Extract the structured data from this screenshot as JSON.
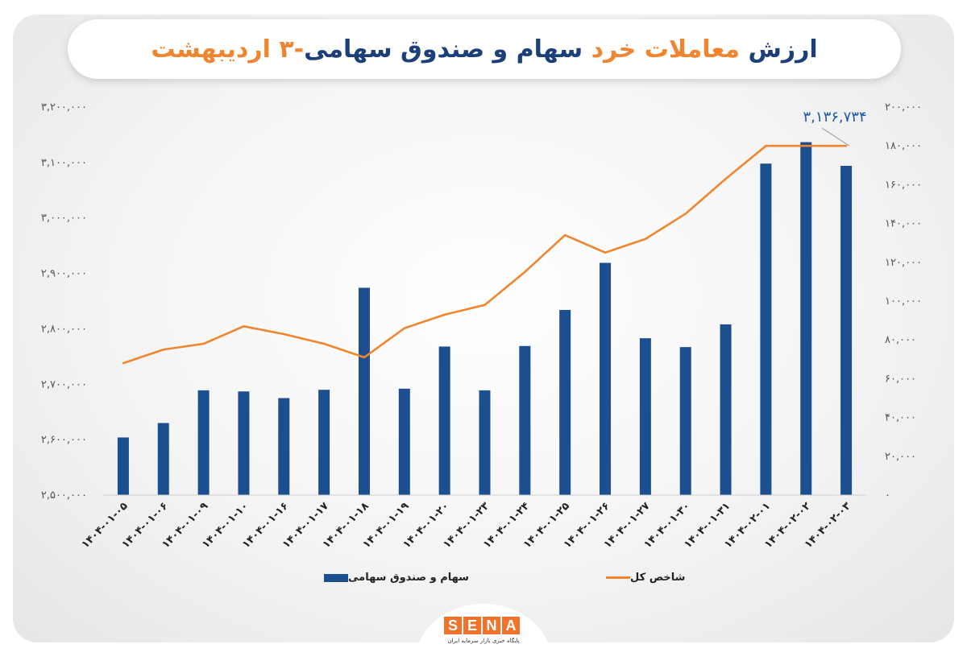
{
  "title": {
    "part1": "ارزش ",
    "part2": "معاملات خرد ",
    "part3": "سهام و صندوق سهامی",
    "part4": "-۳ اردیبهشت",
    "colors": {
      "dark": "#1c3f7a",
      "accent": "#f0852f"
    }
  },
  "quote_left": "“",
  "quote_right": "”",
  "legend": {
    "bar_label": "سهام و صندوق سهامی",
    "line_label": "شاخص کل"
  },
  "logo": {
    "letters": [
      "S",
      "E",
      "N",
      "A"
    ],
    "subtitle": "پایگاه خبری بازار سرمایه ایران"
  },
  "chart_data": {
    "type": "bar",
    "categories": [
      "۱۴۰۴-۰۱-۰۵",
      "۱۴۰۴-۰۱-۰۶",
      "۱۴۰۴-۰۱-۰۹",
      "۱۴۰۴-۰۱-۱۰",
      "۱۴۰۴-۰۱-۱۶",
      "۱۴۰۴-۰۱-۱۷",
      "۱۴۰۴-۰۱-۱۸",
      "۱۴۰۴-۰۱-۱۹",
      "۱۴۰۴-۰۱-۲۰",
      "۱۴۰۴-۰۱-۲۳",
      "۱۴۰۴-۰۱-۲۴",
      "۱۴۰۴-۰۱-۲۵",
      "۱۴۰۴-۰۱-۲۶",
      "۱۴۰۴-۰۱-۲۷",
      "۱۴۰۴-۰۱-۳۰",
      "۱۴۰۴-۰۱-۳۱",
      "۱۴۰۴-۰۲-۰۱",
      "۱۴۰۴-۰۲-۰۲",
      "۱۴۰۴-۰۲-۰۳"
    ],
    "series": [
      {
        "name": "سهام و صندوق سهامی",
        "type": "bar",
        "axis": "left",
        "color": "#1c4f8f",
        "values": [
          2604000,
          2630000,
          2689000,
          2687000,
          2675000,
          2690000,
          2874000,
          2692000,
          2768000,
          2689000,
          2769000,
          2834000,
          2919000,
          2783000,
          2767000,
          2808000,
          3098000,
          3136734,
          3094000
        ]
      },
      {
        "name": "شاخص کل",
        "type": "line",
        "axis": "right",
        "color": "#f0852f",
        "values": [
          68000,
          75000,
          78000,
          87000,
          83000,
          78000,
          71000,
          86000,
          93000,
          98000,
          115000,
          134000,
          125000,
          132000,
          145000,
          163000,
          180000,
          180000,
          180000
        ]
      }
    ],
    "y_left": {
      "min": 2500000,
      "max": 3200000,
      "ticks": [
        2500000,
        2600000,
        2700000,
        2800000,
        2900000,
        3000000,
        3100000,
        3200000
      ],
      "tick_labels": [
        "۲,۵۰۰,۰۰۰",
        "۲,۶۰۰,۰۰۰",
        "۲,۷۰۰,۰۰۰",
        "۲,۸۰۰,۰۰۰",
        "۲,۹۰۰,۰۰۰",
        "۳,۰۰۰,۰۰۰",
        "۳,۱۰۰,۰۰۰",
        "۳,۲۰۰,۰۰۰"
      ]
    },
    "y_right": {
      "min": 0,
      "max": 200000,
      "ticks": [
        0,
        20000,
        40000,
        60000,
        80000,
        100000,
        120000,
        140000,
        160000,
        180000,
        200000
      ],
      "tick_labels": [
        "۰",
        "۲۰,۰۰۰",
        "۴۰,۰۰۰",
        "۶۰,۰۰۰",
        "۸۰,۰۰۰",
        "۱۰۰,۰۰۰",
        "۱۲۰,۰۰۰",
        "۱۴۰,۰۰۰",
        "۱۶۰,۰۰۰",
        "۱۸۰,۰۰۰",
        "۲۰۰,۰۰۰"
      ]
    },
    "annotation": {
      "text": "۳,۱۳۶,۷۳۴",
      "series_index": 1,
      "point_index": 18
    },
    "grid": false,
    "legend_position": "bottom"
  }
}
